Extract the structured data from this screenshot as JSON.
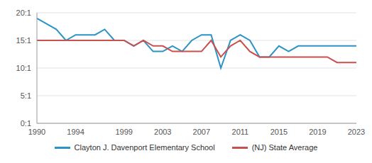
{
  "chart_data": {
    "type": "line",
    "x": [
      1990,
      1991,
      1992,
      1993,
      1994,
      1995,
      1996,
      1997,
      1998,
      1999,
      2000,
      2001,
      2002,
      2003,
      2004,
      2005,
      2006,
      2007,
      2008,
      2009,
      2010,
      2011,
      2012,
      2013,
      2014,
      2015,
      2016,
      2017,
      2018,
      2019,
      2020,
      2021,
      2022,
      2023
    ],
    "series": [
      {
        "name": "Clayton J. Davenport Elementary School",
        "color": "#2b93c6",
        "values": [
          19,
          18,
          17,
          15,
          16,
          16,
          16,
          17,
          15,
          15,
          14,
          15,
          13,
          13,
          14,
          13,
          15,
          16,
          16,
          10,
          15,
          16,
          15,
          12,
          12,
          14,
          13,
          14,
          14,
          14,
          14,
          14,
          14,
          14
        ]
      },
      {
        "name": "(NJ) State Average",
        "color": "#c8504f",
        "values": [
          15,
          15,
          15,
          15,
          15,
          15,
          15,
          15,
          15,
          15,
          14,
          15,
          14,
          14,
          13,
          13,
          13,
          13,
          15,
          12,
          14,
          15,
          13,
          12,
          12,
          12,
          12,
          12,
          12,
          12,
          12,
          11,
          11,
          11
        ]
      }
    ],
    "xlim": [
      1990,
      2023
    ],
    "xticks": [
      1990,
      1994,
      1999,
      2003,
      2007,
      2011,
      2015,
      2019,
      2023
    ],
    "ylim": [
      0,
      20
    ],
    "yticks": [
      {
        "value": 0,
        "label": "0:1"
      },
      {
        "value": 5,
        "label": "5:1"
      },
      {
        "value": 10,
        "label": "10:1"
      },
      {
        "value": 15,
        "label": "15:1"
      },
      {
        "value": 20,
        "label": "20:1"
      }
    ],
    "grid": true,
    "legend": "bottom"
  }
}
